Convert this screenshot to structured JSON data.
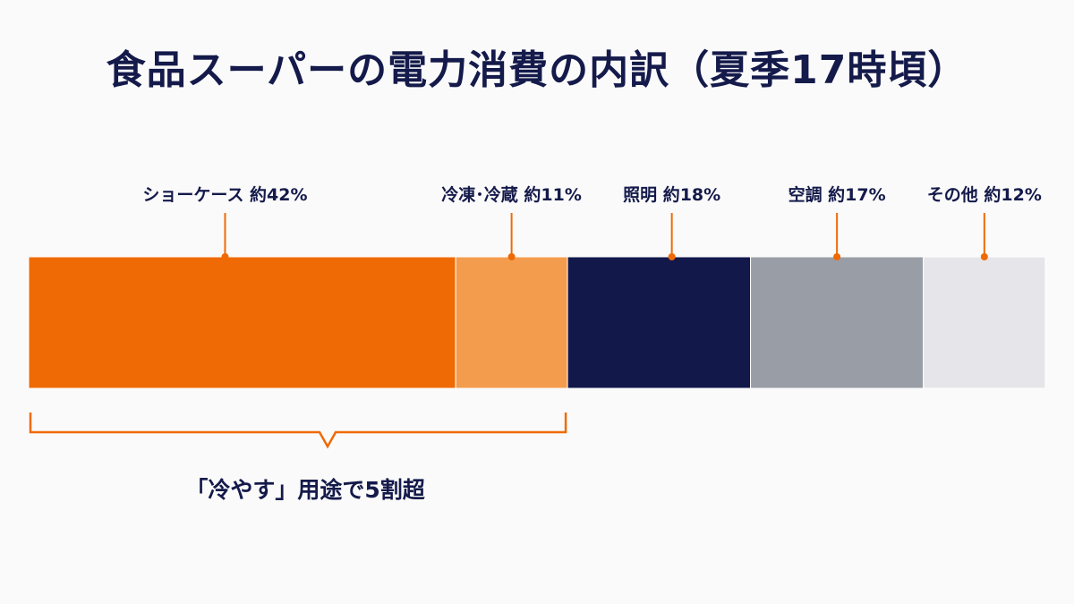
{
  "chart_data": {
    "type": "bar",
    "orientation": "horizontal-stacked",
    "title": "食品スーパーの電力消費の内訳（夏季17時頃）",
    "unit": "%",
    "categories": [
      "ショーケース",
      "冷凍・冷蔵",
      "照明",
      "空調",
      "その他"
    ],
    "labels": [
      "ショーケース 約42%",
      "冷凍･冷蔵 約11%",
      "照明 約18%",
      "空調 約17%",
      "その他 約12%"
    ],
    "values": [
      42,
      11,
      18,
      17,
      12
    ],
    "colors": [
      "#ef6a05",
      "#f39c4d",
      "#12184a",
      "#999ea6",
      "#e6e6ea"
    ],
    "total": 100,
    "annotation": {
      "text": "「冷やす」用途で5割超",
      "covers": [
        "ショーケース",
        "冷凍・冷蔵"
      ],
      "color": "#ef6a05"
    },
    "legend": "none",
    "grid": false
  }
}
